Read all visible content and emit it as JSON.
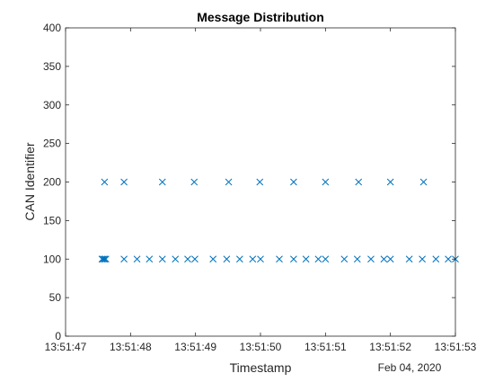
{
  "chart_data": {
    "type": "scatter",
    "title": "Message Distribution",
    "xlabel": "Timestamp",
    "ylabel": "CAN Identifier",
    "x_secondary_label": "Feb 04, 2020",
    "xlim": [
      "13:51:47",
      "13:51:53"
    ],
    "ylim": [
      0,
      400
    ],
    "x_ticks": [
      "13:51:47",
      "13:51:48",
      "13:51:49",
      "13:51:50",
      "13:51:51",
      "13:51:52",
      "13:51:53"
    ],
    "y_ticks": [
      0,
      50,
      100,
      150,
      200,
      250,
      300,
      350,
      400
    ],
    "grid": false,
    "marker": "x",
    "marker_color": "#0072BD",
    "series": [
      {
        "points": [
          {
            "x": "13:51:47.60",
            "y": 200
          },
          {
            "x": "13:51:47.90",
            "y": 200
          },
          {
            "x": "13:51:48.49",
            "y": 200
          },
          {
            "x": "13:51:48.98",
            "y": 200
          },
          {
            "x": "13:51:49.51",
            "y": 200
          },
          {
            "x": "13:51:49.99",
            "y": 200
          },
          {
            "x": "13:51:50.51",
            "y": 200
          },
          {
            "x": "13:51:51.00",
            "y": 200
          },
          {
            "x": "13:51:51.51",
            "y": 200
          },
          {
            "x": "13:51:52.00",
            "y": 200
          },
          {
            "x": "13:51:52.51",
            "y": 200
          },
          {
            "x": "13:51:47.56",
            "y": 100
          },
          {
            "x": "13:51:47.58",
            "y": 100
          },
          {
            "x": "13:51:47.60",
            "y": 100
          },
          {
            "x": "13:51:47.62",
            "y": 100
          },
          {
            "x": "13:51:47.90",
            "y": 100
          },
          {
            "x": "13:51:48.10",
            "y": 100
          },
          {
            "x": "13:51:48.29",
            "y": 100
          },
          {
            "x": "13:51:48.49",
            "y": 100
          },
          {
            "x": "13:51:48.69",
            "y": 100
          },
          {
            "x": "13:51:48.88",
            "y": 100
          },
          {
            "x": "13:51:48.99",
            "y": 100
          },
          {
            "x": "13:51:49.27",
            "y": 100
          },
          {
            "x": "13:51:49.48",
            "y": 100
          },
          {
            "x": "13:51:49.68",
            "y": 100
          },
          {
            "x": "13:51:49.88",
            "y": 100
          },
          {
            "x": "13:51:50.00",
            "y": 100
          },
          {
            "x": "13:51:50.29",
            "y": 100
          },
          {
            "x": "13:51:50.51",
            "y": 100
          },
          {
            "x": "13:51:50.70",
            "y": 100
          },
          {
            "x": "13:51:50.89",
            "y": 100
          },
          {
            "x": "13:51:51.00",
            "y": 100
          },
          {
            "x": "13:51:51.29",
            "y": 100
          },
          {
            "x": "13:51:51.49",
            "y": 100
          },
          {
            "x": "13:51:51.70",
            "y": 100
          },
          {
            "x": "13:51:51.90",
            "y": 100
          },
          {
            "x": "13:51:52.00",
            "y": 100
          },
          {
            "x": "13:51:52.29",
            "y": 100
          },
          {
            "x": "13:51:52.49",
            "y": 100
          },
          {
            "x": "13:51:52.70",
            "y": 100
          },
          {
            "x": "13:51:52.89",
            "y": 100
          },
          {
            "x": "13:51:53.00",
            "y": 100
          }
        ]
      }
    ]
  }
}
